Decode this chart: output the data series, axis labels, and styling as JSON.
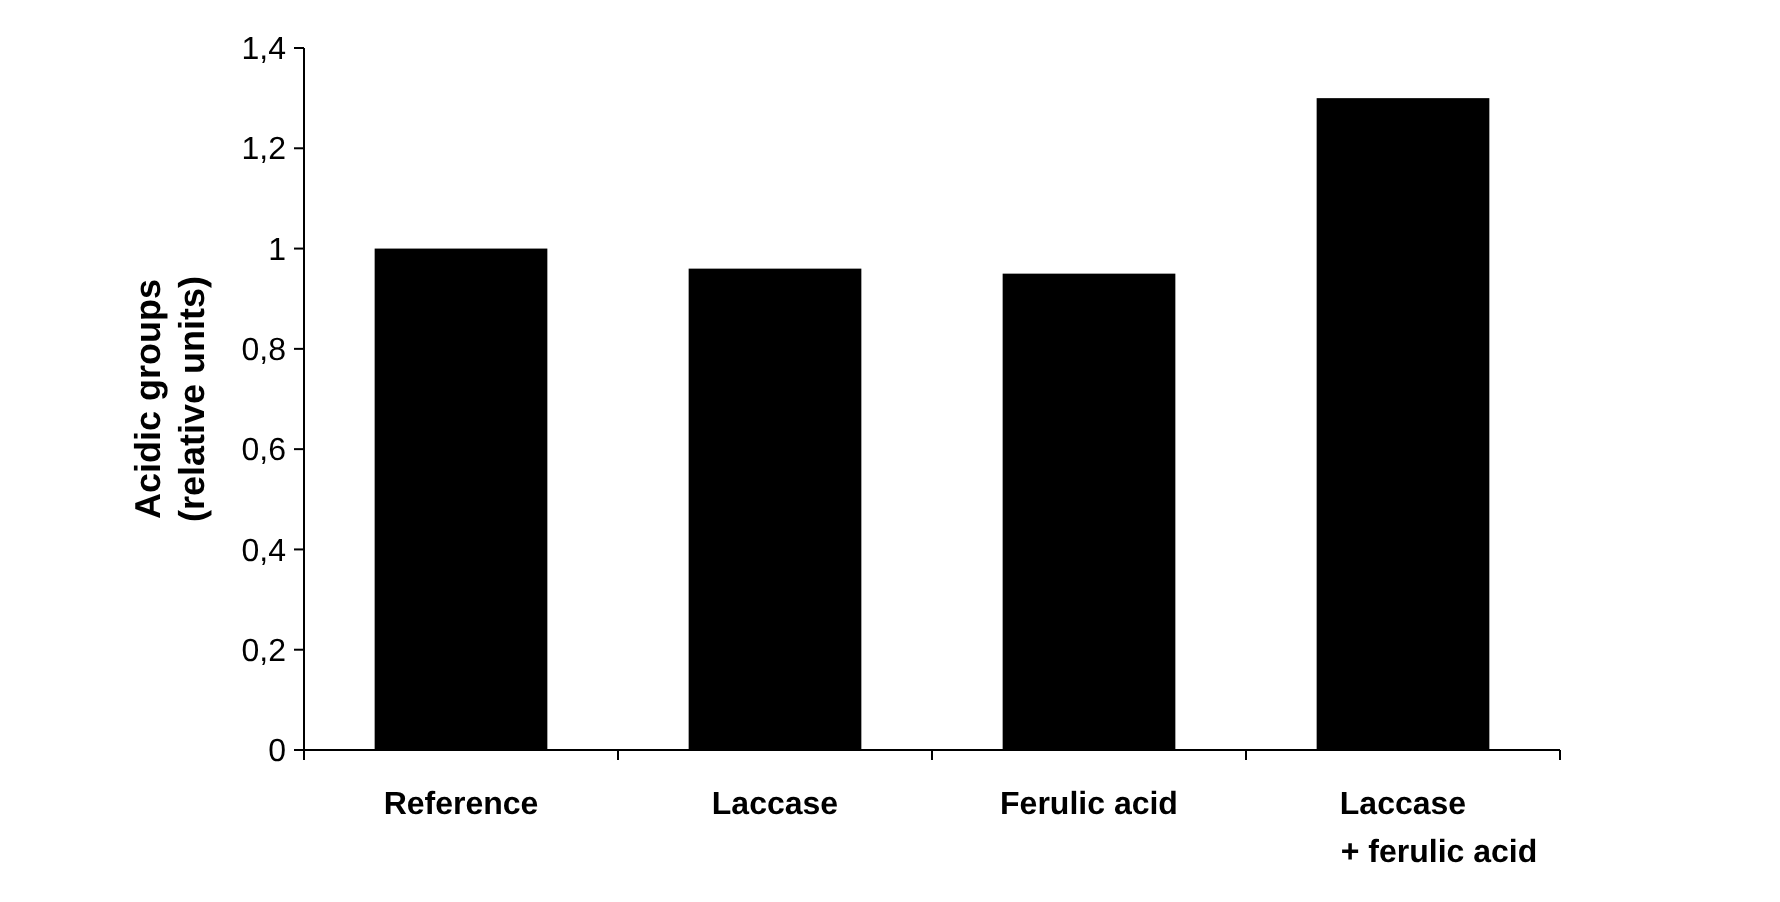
{
  "chart_data": {
    "type": "bar",
    "ylabel": "Acidic groups\n(relative units)",
    "categories": [
      "Reference",
      "Laccase",
      "Ferulic acid",
      "Laccase\n+ ferulic acid"
    ],
    "values": [
      1.0,
      0.96,
      0.95,
      1.3
    ],
    "color": "#000000",
    "ylim": [
      0,
      1.4
    ],
    "yticks": [
      0,
      {
        "value": 0.2,
        "label": "0,2"
      },
      {
        "value": 0.4,
        "label": "0,4"
      },
      {
        "value": 0.6,
        "label": "0,6"
      },
      {
        "value": 0.8,
        "label": "0,8"
      },
      1,
      {
        "value": 1.2,
        "label": "1,2"
      },
      {
        "value": 1.4,
        "label": "1,4"
      }
    ],
    "grid": false
  }
}
